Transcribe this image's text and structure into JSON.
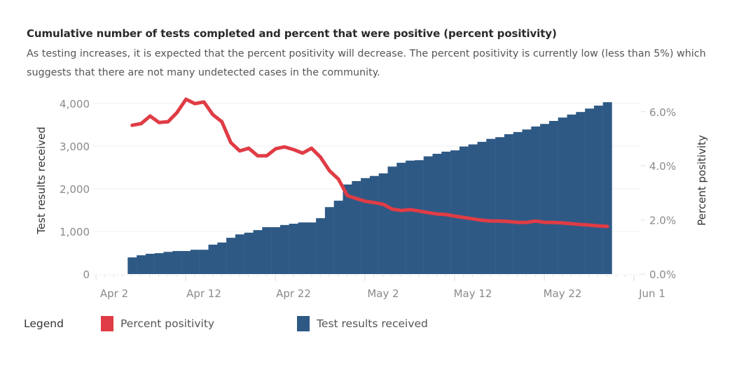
{
  "header": {
    "title": "Cumulative number of tests completed and percent that were positive (percent positivity)",
    "subtitle": "As testing increases, it is expected that the percent positivity will decrease. The percent positivity is currently low (less than 5%) which suggests that there are not many undetected cases in the community."
  },
  "legend": {
    "title": "Legend",
    "items": [
      {
        "label": "Percent positivity",
        "color": "#e03c45"
      },
      {
        "label": "Test results received",
        "color": "#2e5985"
      }
    ]
  },
  "chart_data": {
    "type": "bar+line",
    "title": "Cumulative number of tests completed and percent that were positive (percent positivity)",
    "xlabel": "",
    "ylabel": "Test results received",
    "y2label": "Percent positivity",
    "ylim": [
      0,
      4300
    ],
    "y2lim": [
      0,
      0.0675
    ],
    "grid": true,
    "legend_position": "bottom-left",
    "x_start": "2020-04-02",
    "x_end": "2020-06-01",
    "xticks": [
      {
        "label": "Apr 2",
        "day": 0
      },
      {
        "label": "Apr 12",
        "day": 10
      },
      {
        "label": "Apr 22",
        "day": 20
      },
      {
        "label": "May 2",
        "day": 30
      },
      {
        "label": "May 12",
        "day": 40
      },
      {
        "label": "May 22",
        "day": 50
      },
      {
        "label": "Jun 1",
        "day": 60
      }
    ],
    "yticks": [
      {
        "label": "0",
        "value": 0
      },
      {
        "label": "1,000",
        "value": 1000
      },
      {
        "label": "2,000",
        "value": 2000
      },
      {
        "label": "3,000",
        "value": 3000
      },
      {
        "label": "4,000",
        "value": 4000
      }
    ],
    "y2ticks": [
      {
        "label": "0.0%",
        "value": 0
      },
      {
        "label": "2.0%",
        "value": 0.02
      },
      {
        "label": "4.0%",
        "value": 0.04
      },
      {
        "label": "6.0%",
        "value": 0.06
      }
    ],
    "series": [
      {
        "name": "Test results received",
        "type": "bar",
        "axis": "left",
        "color": "#2e5985",
        "start_day": 4,
        "values": [
          390,
          440,
          475,
          490,
          520,
          540,
          540,
          570,
          570,
          690,
          740,
          850,
          930,
          970,
          1030,
          1100,
          1100,
          1150,
          1180,
          1210,
          1210,
          1310,
          1570,
          1720,
          2100,
          2180,
          2250,
          2300,
          2360,
          2520,
          2610,
          2660,
          2670,
          2760,
          2820,
          2870,
          2900,
          2990,
          3040,
          3100,
          3170,
          3210,
          3280,
          3330,
          3390,
          3460,
          3520,
          3590,
          3670,
          3740,
          3800,
          3880,
          3950,
          4030
        ]
      },
      {
        "name": "Percent positivity",
        "type": "line",
        "axis": "right",
        "color": "#e03c45",
        "start_day": 4,
        "values": [
          0.055,
          0.0556,
          0.0584,
          0.056,
          0.0563,
          0.0597,
          0.0646,
          0.063,
          0.0636,
          0.0589,
          0.0563,
          0.0486,
          0.0455,
          0.0465,
          0.0437,
          0.0437,
          0.0463,
          0.047,
          0.046,
          0.0447,
          0.0465,
          0.0432,
          0.0382,
          0.0351,
          0.029,
          0.0279,
          0.0269,
          0.0264,
          0.0258,
          0.024,
          0.0235,
          0.0238,
          0.0233,
          0.0227,
          0.0222,
          0.022,
          0.0214,
          0.0209,
          0.0204,
          0.0199,
          0.0196,
          0.0196,
          0.0194,
          0.0191,
          0.0191,
          0.0196,
          0.0191,
          0.0191,
          0.0189,
          0.0186,
          0.0183,
          0.0181,
          0.0178,
          0.0176
        ]
      }
    ]
  }
}
